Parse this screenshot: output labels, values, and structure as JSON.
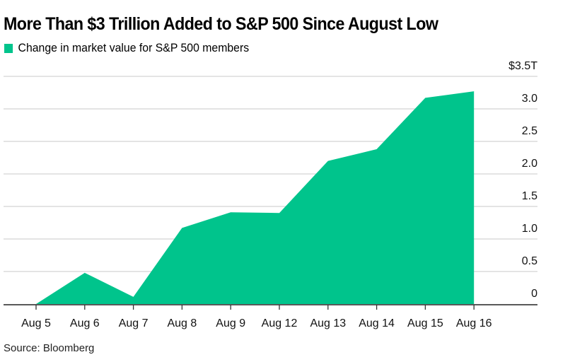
{
  "chart_data": {
    "type": "area",
    "title": "More Than $3 Trillion Added to S&P 500 Since August Low",
    "legend": [
      {
        "name": "Change in market value for S&P 500 members",
        "color": "#00c48c"
      }
    ],
    "legend_position": "top-left",
    "categories": [
      "Aug 5",
      "Aug 6",
      "Aug 7",
      "Aug 8",
      "Aug 9",
      "Aug 12",
      "Aug 13",
      "Aug 14",
      "Aug 15",
      "Aug 16"
    ],
    "series": [
      {
        "name": "Change in market value for S&P 500 members",
        "values": [
          0,
          0.48,
          0.11,
          1.17,
          1.41,
          1.4,
          2.2,
          2.38,
          3.17,
          3.27
        ]
      }
    ],
    "ylim": [
      0,
      3.5
    ],
    "yticks": [
      0,
      0.5,
      1.0,
      1.5,
      2.0,
      2.5,
      3.0,
      3.5
    ],
    "ytick_labels": [
      "0",
      "0.5",
      "1.0",
      "1.5",
      "2.0",
      "2.5",
      "3.0",
      "$3.5T"
    ],
    "yaxis_side": "right",
    "grid": true,
    "xlabel": "",
    "ylabel": "",
    "source": "Source: Bloomberg"
  }
}
